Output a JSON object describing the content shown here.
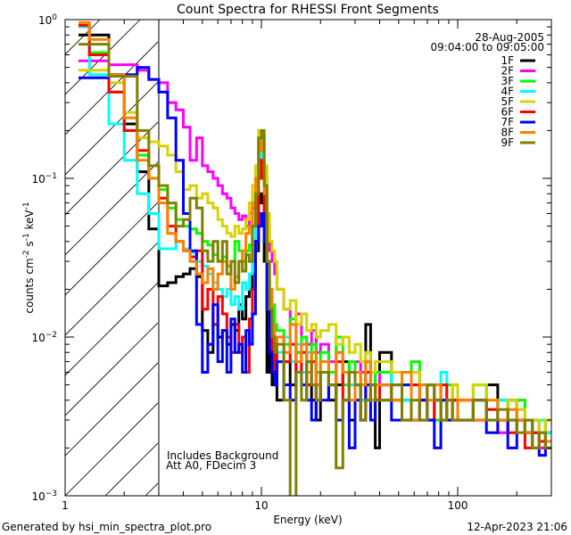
{
  "chart_data": {
    "type": "line",
    "style": "histogram-step",
    "title": "Count Spectra for RHESSI Front Segments",
    "xlabel": "Energy (keV)",
    "ylabel": {
      "text": "counts cm",
      "exp1": "-2",
      "mid": " s",
      "exp2": "-1",
      "end": " keV",
      "exp3": "-1"
    },
    "xscale": "log",
    "yscale": "log",
    "xlim": [
      1,
      300
    ],
    "ylim": [
      0.001,
      1
    ],
    "x_tick_labels": [
      {
        "value": 1,
        "label": "1"
      },
      {
        "value": 10,
        "label": "10"
      },
      {
        "value": 100,
        "label": "100"
      }
    ],
    "y_tick_labels": [
      {
        "value": 1,
        "base": "10",
        "exp": "0"
      },
      {
        "value": 0.1,
        "base": "10",
        "exp": "−1"
      },
      {
        "value": 0.01,
        "base": "10",
        "exp": "−2"
      },
      {
        "value": 0.001,
        "base": "10",
        "exp": "−3"
      }
    ],
    "shaded_region": {
      "from": 1,
      "to": 3,
      "pattern": "diagonal-hatch"
    },
    "vertical_line_at": 3,
    "date": "28-Aug-2005",
    "time_range": "09:04:00 to 09:05:00",
    "annotations": [
      "Includes Background",
      "Att A0, FDecim 3"
    ],
    "legend_position": "top-right",
    "bin_edges": [
      1.17,
      1.33,
      1.67,
      2,
      2.33,
      2.67,
      3,
      3.33,
      3.67,
      4,
      4.33,
      4.67,
      5,
      5.33,
      5.67,
      6,
      6.33,
      6.67,
      7,
      7.33,
      7.67,
      8,
      8.33,
      8.67,
      9,
      9.33,
      9.67,
      10,
      10.33,
      10.67,
      11,
      11.33,
      11.67,
      12,
      13,
      14,
      15,
      16,
      17,
      18,
      19,
      20,
      22,
      24,
      26,
      28,
      30,
      32,
      34,
      36,
      38,
      40,
      46,
      52,
      58,
      64,
      70,
      76,
      82,
      88,
      94,
      100,
      120,
      140,
      160,
      180,
      200,
      220,
      240,
      260,
      280,
      300
    ],
    "series": [
      {
        "name": "1F",
        "color": "#000000",
        "values": [
          0.8,
          0.8,
          0.45,
          0.22,
          0.11,
          0.048,
          0.021,
          0.022,
          0.024,
          0.025,
          0.027,
          0.024,
          0.011,
          0.008,
          0.012,
          0.01,
          0.011,
          0.009,
          0.012,
          0.011,
          0.016,
          0.013,
          0.018,
          0.02,
          0.025,
          0.035,
          0.08,
          0.07,
          0.03,
          0.006,
          0.009,
          0.005,
          0.007,
          0.004,
          0.007,
          0.005,
          0.008,
          0.006,
          0.005,
          0.004,
          0.003,
          0.006,
          0.004,
          0.005,
          0.007,
          0.003,
          0.005,
          0.004,
          0.012,
          0.006,
          0.002,
          0.008,
          0.005,
          0.004,
          0.006,
          0.003,
          0.005,
          0.004,
          0.003,
          0.004,
          0.005,
          0.004,
          0.003,
          0.005,
          0.003,
          0.004,
          0.003,
          0.0025,
          0.003,
          0.002,
          0.0025
        ]
      },
      {
        "name": "2F",
        "color": "#ff00ff",
        "values": [
          0.55,
          0.55,
          0.52,
          0.52,
          0.48,
          0.42,
          0.4,
          0.3,
          0.27,
          0.21,
          0.13,
          0.18,
          0.12,
          0.11,
          0.1,
          0.09,
          0.08,
          0.075,
          0.065,
          0.06,
          0.055,
          0.058,
          0.05,
          0.06,
          0.065,
          0.07,
          0.12,
          0.19,
          0.1,
          0.05,
          0.035,
          0.03,
          0.025,
          0.02,
          0.015,
          0.012,
          0.014,
          0.01,
          0.009,
          0.011,
          0.008,
          0.009,
          0.007,
          0.008,
          0.006,
          0.005,
          0.007,
          0.006,
          0.005,
          0.004,
          0.006,
          0.005,
          0.004,
          0.006,
          0.003,
          0.004,
          0.005,
          0.003,
          0.004,
          0.003,
          0.004,
          0.003,
          0.004,
          0.003,
          0.0025,
          0.003,
          0.004,
          0.003,
          0.0025,
          0.002,
          0.003
        ]
      },
      {
        "name": "3F",
        "color": "#00ff00",
        "values": [
          0.92,
          0.62,
          0.35,
          0.2,
          0.14,
          0.1,
          0.085,
          0.065,
          0.055,
          0.05,
          0.048,
          0.045,
          0.04,
          0.038,
          0.033,
          0.03,
          0.032,
          0.028,
          0.03,
          0.04,
          0.035,
          0.03,
          0.035,
          0.038,
          0.05,
          0.06,
          0.13,
          0.18,
          0.08,
          0.03,
          0.02,
          0.016,
          0.012,
          0.011,
          0.009,
          0.013,
          0.008,
          0.01,
          0.007,
          0.009,
          0.006,
          0.008,
          0.006,
          0.01,
          0.005,
          0.007,
          0.006,
          0.005,
          0.007,
          0.004,
          0.006,
          0.006,
          0.004,
          0.005,
          0.007,
          0.004,
          0.005,
          0.003,
          0.004,
          0.005,
          0.003,
          0.004,
          0.005,
          0.003,
          0.004,
          0.003,
          0.004,
          0.003,
          0.003,
          0.0025,
          0.003
        ]
      },
      {
        "name": "4F",
        "color": "#00ffff",
        "values": [
          0.9,
          0.45,
          0.22,
          0.13,
          0.08,
          0.06,
          0.036,
          0.036,
          0.04,
          0.036,
          0.034,
          0.03,
          0.028,
          0.025,
          0.022,
          0.02,
          0.018,
          0.02,
          0.016,
          0.018,
          0.015,
          0.022,
          0.02,
          0.025,
          0.035,
          0.05,
          0.12,
          0.16,
          0.07,
          0.025,
          0.015,
          0.012,
          0.009,
          0.008,
          0.01,
          0.007,
          0.009,
          0.006,
          0.008,
          0.007,
          0.005,
          0.007,
          0.005,
          0.008,
          0.006,
          0.005,
          0.006,
          0.004,
          0.006,
          0.005,
          0.004,
          0.005,
          0.006,
          0.004,
          0.005,
          0.003,
          0.005,
          0.004,
          0.006,
          0.003,
          0.004,
          0.004,
          0.005,
          0.003,
          0.004,
          0.003,
          0.0035,
          0.003,
          0.0025,
          0.003,
          0.0025
        ]
      },
      {
        "name": "5F",
        "color": "#d4d400",
        "values": [
          0.48,
          0.48,
          0.4,
          0.26,
          0.18,
          0.17,
          0.16,
          0.14,
          0.11,
          0.085,
          0.09,
          0.075,
          0.08,
          0.07,
          0.065,
          0.055,
          0.05,
          0.045,
          0.043,
          0.05,
          0.045,
          0.048,
          0.055,
          0.07,
          0.09,
          0.12,
          0.2,
          0.2,
          0.12,
          0.06,
          0.04,
          0.035,
          0.03,
          0.02,
          0.015,
          0.017,
          0.012,
          0.014,
          0.011,
          0.012,
          0.01,
          0.011,
          0.012,
          0.009,
          0.01,
          0.008,
          0.009,
          0.007,
          0.008,
          0.006,
          0.007,
          0.007,
          0.006,
          0.005,
          0.006,
          0.004,
          0.005,
          0.005,
          0.004,
          0.004,
          0.005,
          0.004,
          0.005,
          0.004,
          0.003,
          0.004,
          0.0035,
          0.003,
          0.003,
          0.0025,
          0.003
        ]
      },
      {
        "name": "6F",
        "color": "#ff0000",
        "values": [
          0.92,
          0.6,
          0.35,
          0.2,
          0.15,
          0.1,
          0.075,
          0.05,
          0.04,
          0.035,
          0.032,
          0.035,
          0.015,
          0.02,
          0.012,
          0.018,
          0.014,
          0.01,
          0.008,
          0.012,
          0.008,
          0.01,
          0.006,
          0.013,
          0.02,
          0.04,
          0.1,
          0.13,
          0.06,
          0.02,
          0.012,
          0.008,
          0.006,
          0.01,
          0.007,
          0.009,
          0.006,
          0.008,
          0.005,
          0.007,
          0.004,
          0.006,
          0.005,
          0.007,
          0.004,
          0.006,
          0.005,
          0.003,
          0.006,
          0.005,
          0.004,
          0.005,
          0.004,
          0.003,
          0.005,
          0.004,
          0.003,
          0.004,
          0.005,
          0.003,
          0.004,
          0.004,
          0.003,
          0.0035,
          0.003,
          0.0025,
          0.003,
          0.002,
          0.0025,
          0.0022,
          0.002
        ]
      },
      {
        "name": "7F",
        "color": "#0000ff",
        "values": [
          0.43,
          0.43,
          0.45,
          0.45,
          0.5,
          0.42,
          0.35,
          0.24,
          0.13,
          0.06,
          0.035,
          0.012,
          0.006,
          0.009,
          0.016,
          0.007,
          0.011,
          0.006,
          0.013,
          0.008,
          0.009,
          0.006,
          0.011,
          0.009,
          0.014,
          0.04,
          0.05,
          0.06,
          0.04,
          0.015,
          0.008,
          0.006,
          0.005,
          0.007,
          0.005,
          0.004,
          0.006,
          0.005,
          0.004,
          0.003,
          0.005,
          0.004,
          0.005,
          0.003,
          0.004,
          0.002,
          0.004,
          0.003,
          0.005,
          0.003,
          0.004,
          0.004,
          0.003,
          0.005,
          0.003,
          0.004,
          0.003,
          0.002,
          0.004,
          0.003,
          0.003,
          0.003,
          0.004,
          0.0025,
          0.003,
          0.002,
          0.003,
          0.0025,
          0.002,
          0.0018,
          0.002
        ]
      },
      {
        "name": "8F",
        "color": "#ff8000",
        "values": [
          0.96,
          0.75,
          0.45,
          0.24,
          0.13,
          0.1,
          0.07,
          0.045,
          0.04,
          0.035,
          0.03,
          0.025,
          0.022,
          0.027,
          0.02,
          0.025,
          0.03,
          0.028,
          0.02,
          0.024,
          0.03,
          0.035,
          0.045,
          0.05,
          0.07,
          0.1,
          0.15,
          0.17,
          0.08,
          0.03,
          0.02,
          0.012,
          0.009,
          0.01,
          0.008,
          0.012,
          0.007,
          0.009,
          0.006,
          0.008,
          0.005,
          0.007,
          0.005,
          0.008,
          0.006,
          0.004,
          0.006,
          0.005,
          0.007,
          0.004,
          0.005,
          0.005,
          0.004,
          0.006,
          0.003,
          0.005,
          0.004,
          0.005,
          0.003,
          0.004,
          0.003,
          0.004,
          0.003,
          0.004,
          0.003,
          0.0035,
          0.003,
          0.0025,
          0.002,
          0.0025,
          0.0022
        ]
      },
      {
        "name": "9F",
        "color": "#808000",
        "values": [
          0.7,
          0.7,
          0.44,
          0.44,
          0.2,
          0.12,
          0.09,
          0.07,
          0.05,
          0.055,
          0.075,
          0.065,
          0.035,
          0.03,
          0.04,
          0.03,
          0.04,
          0.025,
          0.03,
          0.022,
          0.03,
          0.026,
          0.033,
          0.03,
          0.05,
          0.08,
          0.18,
          0.2,
          0.09,
          0.03,
          0.015,
          0.01,
          0.008,
          0.009,
          0.004,
          0.0009,
          0.006,
          0.004,
          0.007,
          0.005,
          0.004,
          0.006,
          0.005,
          0.0015,
          0.004,
          0.006,
          0.005,
          0.003,
          0.004,
          0.005,
          0.004,
          0.004,
          0.005,
          0.003,
          0.004,
          0.003,
          0.005,
          0.004,
          0.003,
          0.004,
          0.003,
          0.003,
          0.004,
          0.003,
          0.0035,
          0.003,
          0.0025,
          0.003,
          0.002,
          0.0025,
          0.002
        ]
      }
    ]
  },
  "footer": {
    "generated_by": "Generated by hsi_min_spectra_plot.pro",
    "timestamp": "12-Apr-2023 21:06"
  }
}
